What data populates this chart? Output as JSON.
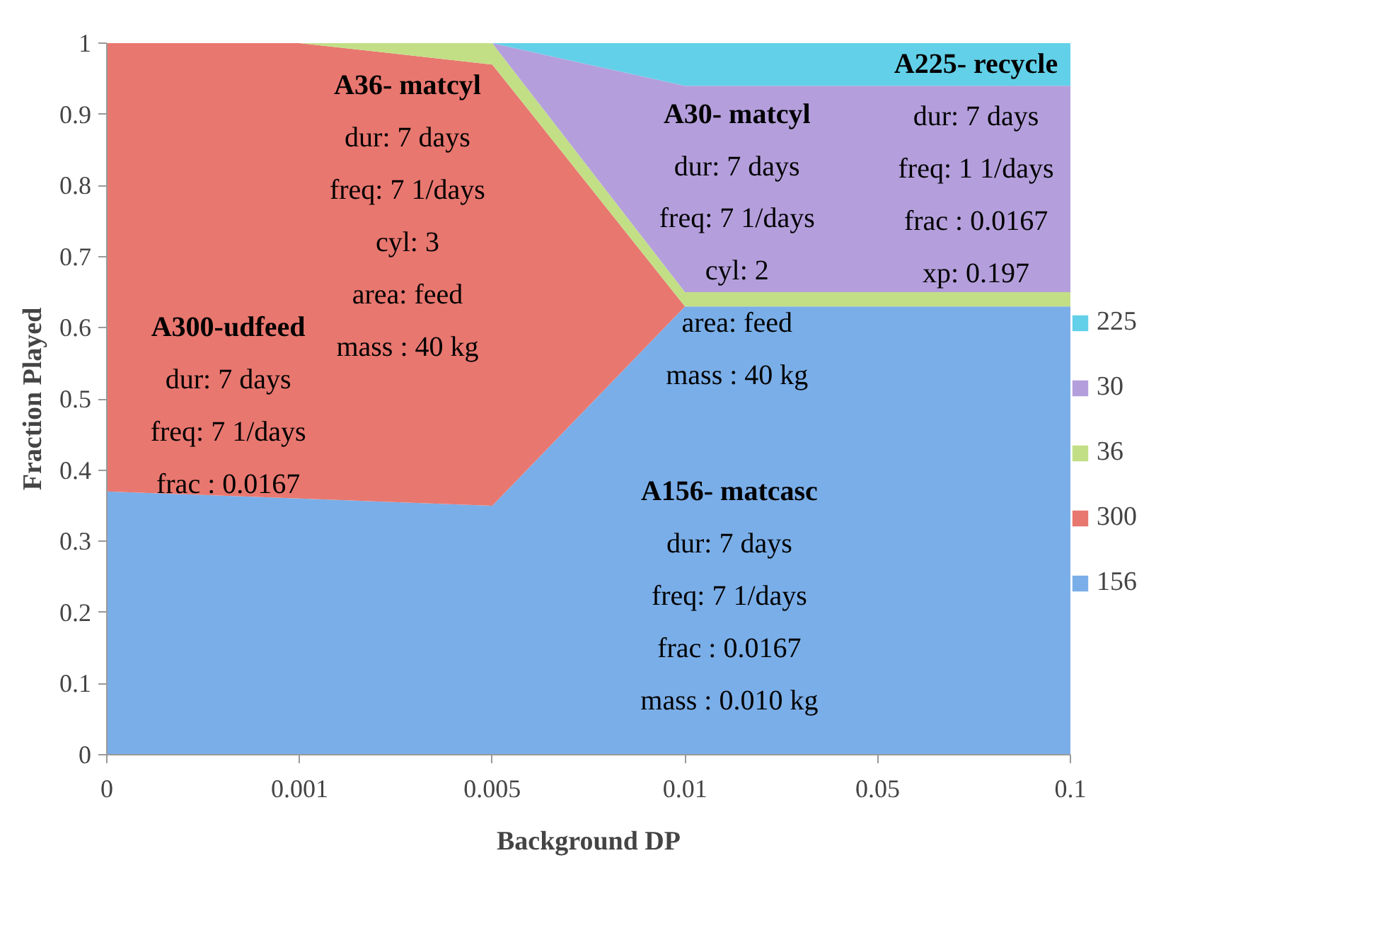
{
  "chart_data": {
    "type": "area",
    "stacked": true,
    "xlabel": "Background DP",
    "ylabel": "Fraction Played",
    "categories": [
      "0",
      "0.001",
      "0.005",
      "0.01",
      "0.05",
      "0.1"
    ],
    "series": [
      {
        "name": "156",
        "color": "#7aaee8",
        "values": [
          0.37,
          0.36,
          0.35,
          0.63,
          0.63,
          0.63
        ]
      },
      {
        "name": "300",
        "color": "#e8776f",
        "values": [
          0.63,
          0.64,
          0.62,
          0,
          0,
          0
        ]
      },
      {
        "name": "36",
        "color": "#c2df86",
        "values": [
          0,
          0,
          0.03,
          0.02,
          0.02,
          0.02
        ]
      },
      {
        "name": "30",
        "color": "#b49fdc",
        "values": [
          0,
          0,
          0,
          0.29,
          0.29,
          0.29
        ]
      },
      {
        "name": "225",
        "color": "#62d0e8",
        "values": [
          0,
          0,
          0,
          0.06,
          0.06,
          0.06
        ]
      }
    ],
    "ylim": [
      0,
      1
    ],
    "yticks": [
      0,
      0.1,
      0.2,
      0.3,
      0.4,
      0.5,
      0.6,
      0.7,
      0.8,
      0.9,
      1
    ],
    "legend": "right",
    "annotations": [
      "A36- matcyl\ndur: 7 days\nfreq: 7 1/days\ncyl: 3\narea: feed\nmass : 40 kg",
      "A30- matcyl\ndur: 7 days\nfreq: 7 1/days\ncyl: 2\narea: feed\nmass : 40 kg",
      "A225- recycle\ndur: 7 days\nfreq: 1 1/days\nfrac : 0.0167\nxp: 0.197",
      "A300-udfeed\ndur: 7 days\nfreq: 7 1/days\nfrac : 0.0167",
      "A156- matcasc\ndur: 7 days\nfreq: 7 1/days\nfrac : 0.0167\nmass : 0.010 kg"
    ]
  }
}
